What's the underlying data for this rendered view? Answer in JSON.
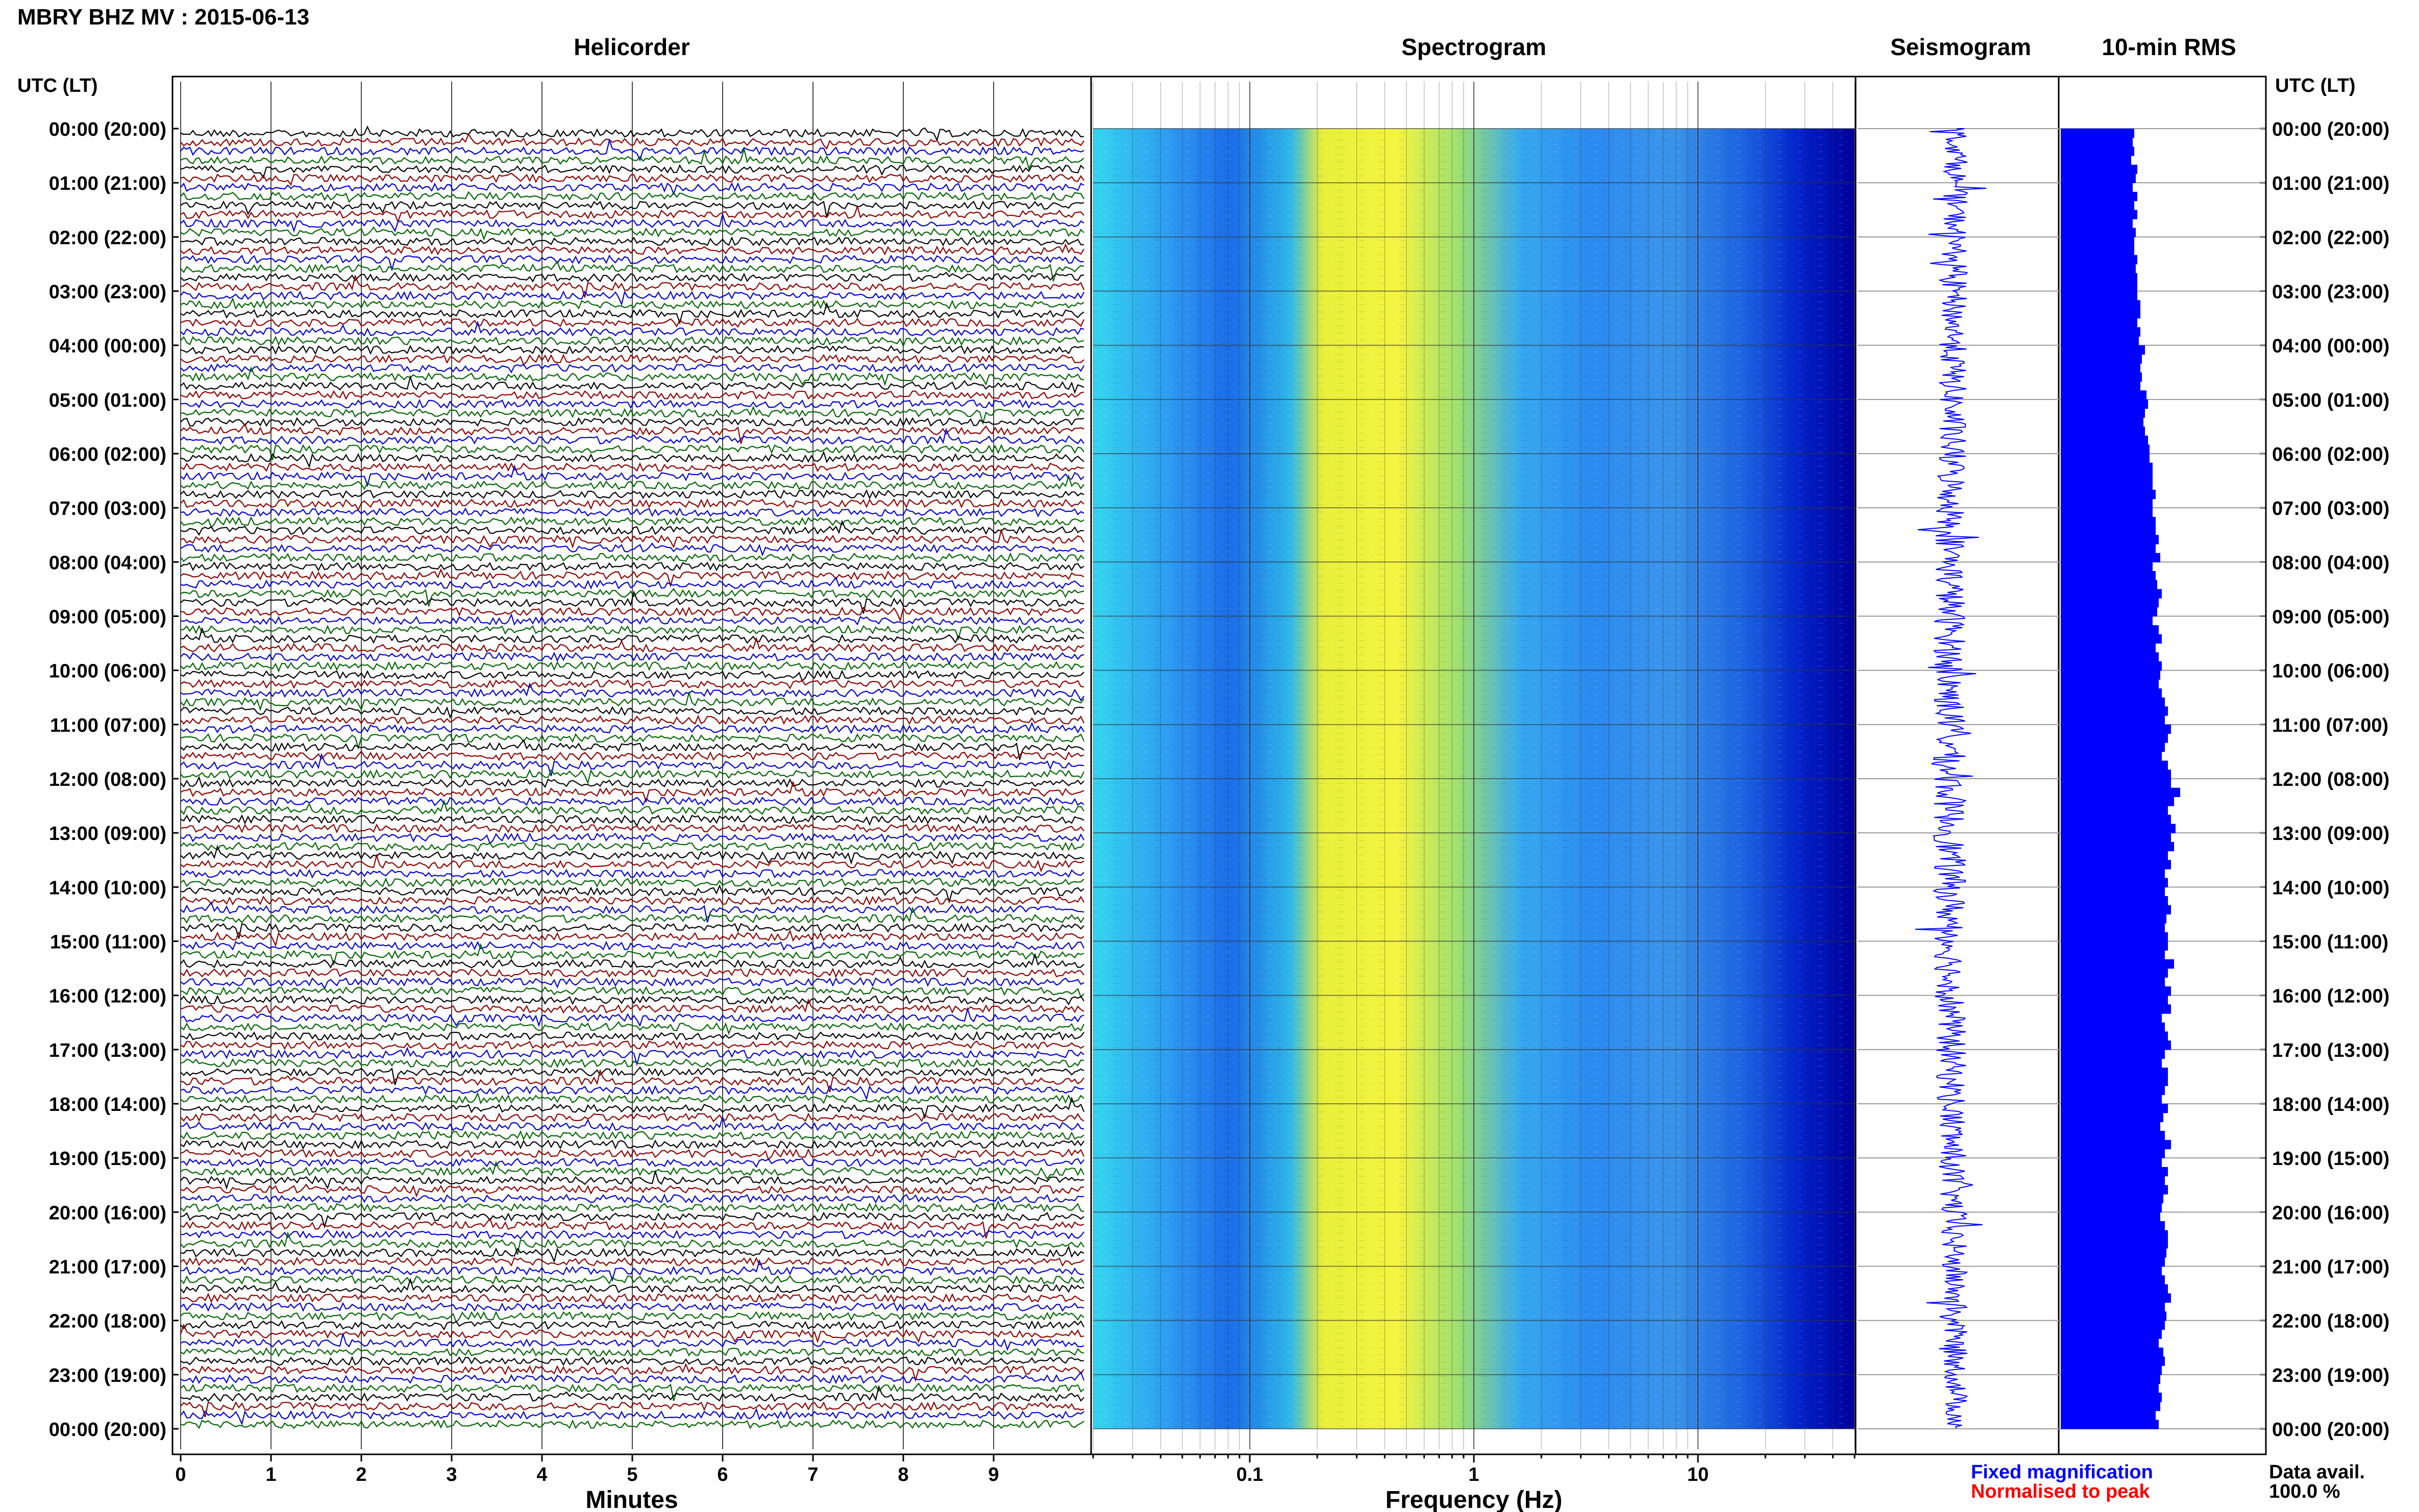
{
  "header": {
    "title": "MBRY BHZ MV : 2015-06-13",
    "left_axis_label": "UTC (LT)",
    "right_axis_label": "UTC (LT)"
  },
  "panels": {
    "helicorder": "Helicorder",
    "spectrogram": "Spectrogram",
    "seismogram": "Seismogram",
    "rms": "10-min RMS"
  },
  "axes": {
    "helicorder_xlabel": "Minutes",
    "spectrogram_xlabel": "Frequency (Hz)",
    "minute_ticks": [
      "0",
      "1",
      "2",
      "3",
      "4",
      "5",
      "6",
      "7",
      "8",
      "9"
    ],
    "freq_ticks": [
      "0.1",
      "1",
      "10"
    ]
  },
  "legend": {
    "fixed": "Fixed magnification",
    "normalised": "Normalised to peak",
    "fixed_color": "#0000ff",
    "normalised_color": "#ff0000",
    "data_avail_label": "Data avail.",
    "data_avail_value": "100.0 %"
  },
  "trace_colors": [
    "#000000",
    "#8b0000",
    "#0000cd",
    "#006400"
  ],
  "chart_data": {
    "type": "heatmap",
    "time_labels": [
      "00:00 (20:00)",
      "01:00 (21:00)",
      "02:00 (22:00)",
      "03:00 (23:00)",
      "04:00 (00:00)",
      "05:00 (01:00)",
      "06:00 (02:00)",
      "07:00 (03:00)",
      "08:00 (04:00)",
      "09:00 (05:00)",
      "10:00 (06:00)",
      "11:00 (07:00)",
      "12:00 (08:00)",
      "13:00 (09:00)",
      "14:00 (10:00)",
      "15:00 (11:00)",
      "16:00 (12:00)",
      "17:00 (13:00)",
      "18:00 (14:00)",
      "19:00 (15:00)",
      "20:00 (16:00)",
      "21:00 (17:00)",
      "22:00 (18:00)",
      "23:00 (19:00)",
      "00:00 (20:00)"
    ],
    "helicorder_xlim_minutes": [
      0,
      10
    ],
    "spectrogram_xlim_hz": [
      0.02,
      50
    ],
    "spectrogram_xscale": "log",
    "spectrogram_colors": [
      "#00e5ff",
      "#1e90ff",
      "#ffff33",
      "#3399ff",
      "#0000aa"
    ],
    "rms_10min_relative": [
      0.48,
      0.47,
      0.48,
      0.46,
      0.5,
      0.49,
      0.47,
      0.5,
      0.48,
      0.5,
      0.47,
      0.49,
      0.48,
      0.48,
      0.5,
      0.49,
      0.5,
      0.5,
      0.5,
      0.52,
      0.52,
      0.5,
      0.52,
      0.51,
      0.55,
      0.53,
      0.52,
      0.53,
      0.52,
      0.56,
      0.57,
      0.55,
      0.54,
      0.55,
      0.57,
      0.58,
      0.58,
      0.6,
      0.6,
      0.6,
      0.62,
      0.6,
      0.6,
      0.62,
      0.62,
      0.64,
      0.62,
      0.65,
      0.6,
      0.62,
      0.63,
      0.66,
      0.64,
      0.63,
      0.6,
      0.64,
      0.66,
      0.62,
      0.64,
      0.66,
      0.65,
      0.64,
      0.66,
      0.68,
      0.7,
      0.68,
      0.72,
      0.7,
      0.68,
      0.66,
      0.7,
      0.72,
      0.72,
      0.78,
      0.74,
      0.7,
      0.72,
      0.75,
      0.72,
      0.74,
      0.7,
      0.72,
      0.68,
      0.7,
      0.68,
      0.7,
      0.72,
      0.69,
      0.68,
      0.7,
      0.7,
      0.68,
      0.74,
      0.7,
      0.68,
      0.72,
      0.7,
      0.72,
      0.66,
      0.68,
      0.7,
      0.72,
      0.68,
      0.66,
      0.7,
      0.7,
      0.68,
      0.66,
      0.7,
      0.67,
      0.65,
      0.68,
      0.72,
      0.68,
      0.66,
      0.7,
      0.68,
      0.7,
      0.67,
      0.66,
      0.65,
      0.68,
      0.7,
      0.7,
      0.69,
      0.68,
      0.66,
      0.68,
      0.7,
      0.72,
      0.68,
      0.69,
      0.68,
      0.66,
      0.64,
      0.67,
      0.68,
      0.66,
      0.65,
      0.64,
      0.66,
      0.65,
      0.62,
      0.64
    ]
  }
}
